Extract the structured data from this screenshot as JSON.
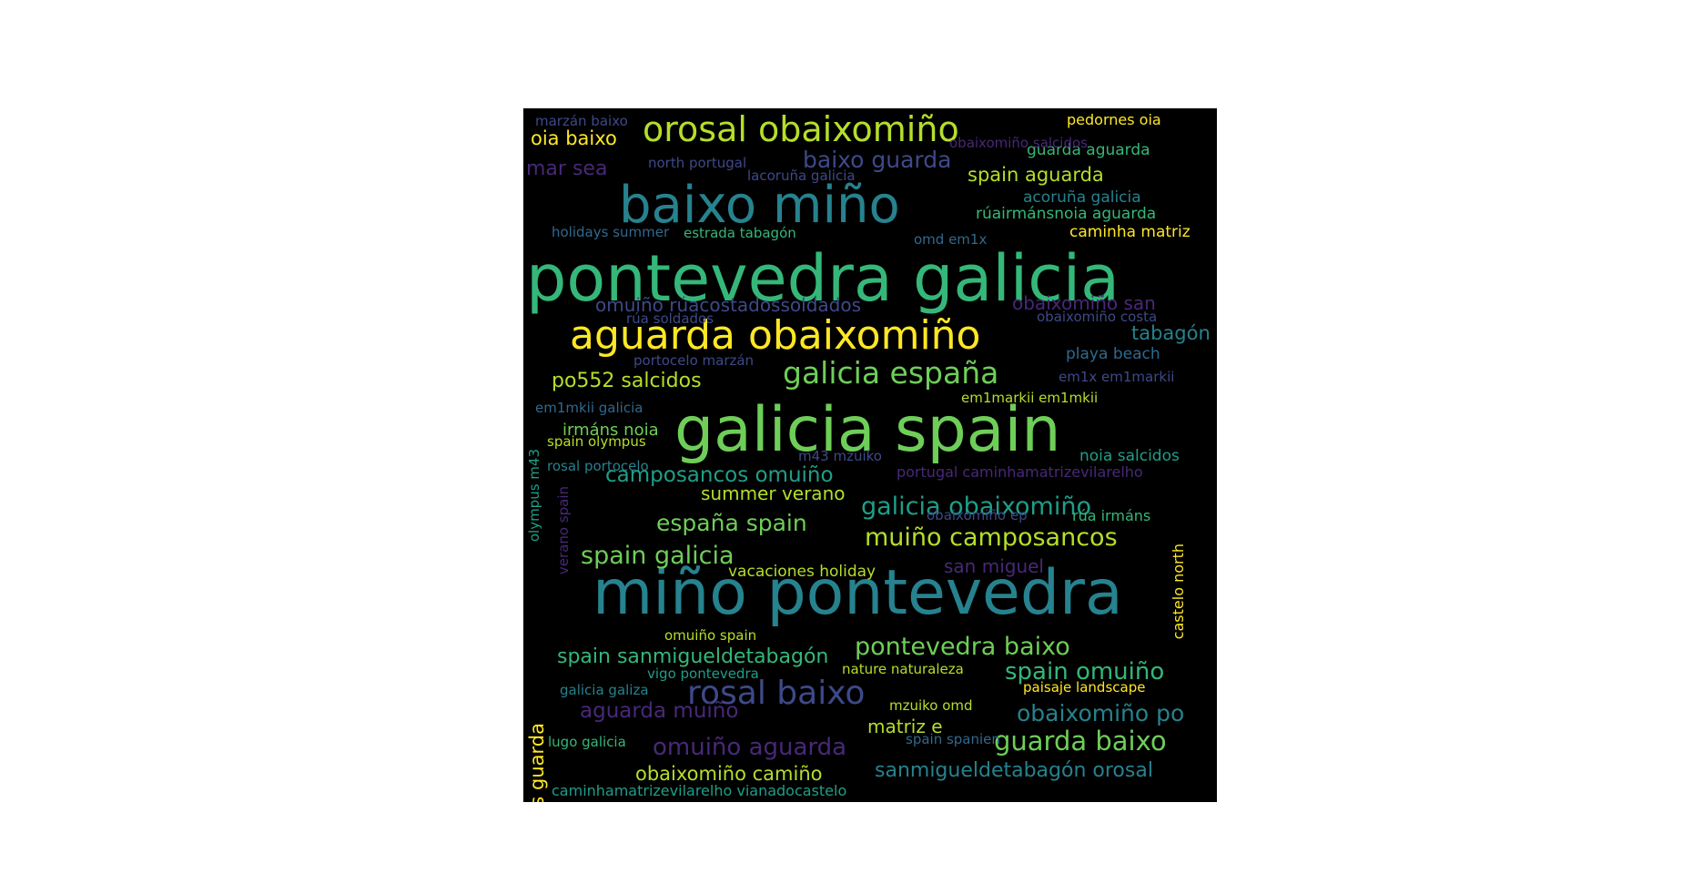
{
  "palette": {
    "yellow": "#fde725",
    "lime": "#b5de2b",
    "green": "#6ece58",
    "seagreen": "#35b779",
    "teal": "#1f9e89",
    "blue": "#26828e",
    "slate": "#31688e",
    "indigo": "#3e4989",
    "purple": "#482878",
    "dark": "#440154"
  },
  "words": [
    {
      "text": "pontevedra galicia",
      "color": "seagreen",
      "size": 70
    },
    {
      "text": "galicia spain",
      "color": "green",
      "size": 68
    },
    {
      "text": "miño pontevedra",
      "color": "blue",
      "size": 68
    },
    {
      "text": "baixo miño",
      "color": "blue",
      "size": 56
    },
    {
      "text": "aguarda obaixomiño",
      "color": "yellow",
      "size": 44
    },
    {
      "text": "orosal obaixomiño",
      "color": "lime",
      "size": 38
    },
    {
      "text": "rosal baixo",
      "color": "indigo",
      "size": 36
    },
    {
      "text": "galicia españa",
      "color": "green",
      "size": 33
    },
    {
      "text": "guarda baixo",
      "color": "green",
      "size": 29
    },
    {
      "text": "pontevedra baixo",
      "color": "green",
      "size": 27
    },
    {
      "text": "galicia obaixomiño",
      "color": "teal",
      "size": 27
    },
    {
      "text": "muiño camposancos",
      "color": "lime",
      "size": 27
    },
    {
      "text": "spain galicia",
      "color": "green",
      "size": 27
    },
    {
      "text": "spain omuiño",
      "color": "seagreen",
      "size": 26
    },
    {
      "text": "omuiño aguarda",
      "color": "purple",
      "size": 26
    },
    {
      "text": "baixo guarda",
      "color": "indigo",
      "size": 25
    },
    {
      "text": "españa spain",
      "color": "green",
      "size": 25
    },
    {
      "text": "obaixomiño po",
      "color": "blue",
      "size": 25
    },
    {
      "text": "camposancos omuiño",
      "color": "teal",
      "size": 23
    },
    {
      "text": "aguarda muiño",
      "color": "purple",
      "size": 23
    },
    {
      "text": "spain sanmigueldetabagón",
      "color": "seagreen",
      "size": 22
    },
    {
      "text": "sanmigueldetabagón orosal",
      "color": "blue",
      "size": 22
    },
    {
      "text": "mar sea",
      "color": "purple",
      "size": 22
    },
    {
      "text": "po552 salcidos",
      "color": "lime",
      "size": 22
    },
    {
      "text": "obaixomiño camiño",
      "color": "lime",
      "size": 21
    },
    {
      "text": "spain aguarda",
      "color": "lime",
      "size": 21
    },
    {
      "text": "oia baixo",
      "color": "yellow",
      "size": 21
    },
    {
      "text": "tabagón",
      "color": "blue",
      "size": 21
    },
    {
      "text": "salcidos guarda",
      "color": "yellow",
      "size": 21
    },
    {
      "text": "omuiño rúacostadossoldados",
      "color": "indigo",
      "size": 20
    },
    {
      "text": "obaixomiño san",
      "color": "purple",
      "size": 20
    },
    {
      "text": "summer verano",
      "color": "lime",
      "size": 20
    },
    {
      "text": "san miguel",
      "color": "purple",
      "size": 20
    },
    {
      "text": "matriz e",
      "color": "lime",
      "size": 20
    },
    {
      "text": "irmáns noia",
      "color": "green",
      "size": 18
    },
    {
      "text": "vacaciones holiday",
      "color": "lime",
      "size": 17
    },
    {
      "text": "rúairmánsnoia aguarda",
      "color": "seagreen",
      "size": 17
    },
    {
      "text": "playa beach",
      "color": "slate",
      "size": 17
    },
    {
      "text": "noia salcidos",
      "color": "teal",
      "size": 17
    },
    {
      "text": "guarda aguarda",
      "color": "seagreen",
      "size": 17
    },
    {
      "text": "acoruña galicia",
      "color": "blue",
      "size": 17
    },
    {
      "text": "caminha matriz",
      "color": "yellow",
      "size": 17
    },
    {
      "text": "castelo north",
      "color": "yellow",
      "size": 16
    },
    {
      "text": "pedornes oia",
      "color": "yellow",
      "size": 16
    },
    {
      "text": "rúa irmáns",
      "color": "seagreen",
      "size": 16
    },
    {
      "text": "caminhamatrizevilarelho vianadocastelo",
      "color": "teal",
      "size": 16
    },
    {
      "text": "portugal caminhamatrizevilarelho",
      "color": "purple",
      "size": 16
    },
    {
      "text": "holidays summer",
      "color": "slate",
      "size": 15
    },
    {
      "text": "omd em1x",
      "color": "slate",
      "size": 15
    },
    {
      "text": "obaixomiño salcidos",
      "color": "purple",
      "size": 15
    },
    {
      "text": "obaixomiño costa",
      "color": "indigo",
      "size": 15
    },
    {
      "text": "em1x em1markii",
      "color": "indigo",
      "size": 15
    },
    {
      "text": "em1markii em1mkii",
      "color": "lime",
      "size": 15
    },
    {
      "text": "em1mkii galicia",
      "color": "slate",
      "size": 15
    },
    {
      "text": "marzán baixo",
      "color": "indigo",
      "size": 15
    },
    {
      "text": "north portugal",
      "color": "indigo",
      "size": 15
    },
    {
      "text": "lacoruña galicia",
      "color": "indigo",
      "size": 15
    },
    {
      "text": "estrada tabagón",
      "color": "seagreen",
      "size": 15
    },
    {
      "text": "rúa soldados",
      "color": "indigo",
      "size": 15
    },
    {
      "text": "portocelo marzán",
      "color": "indigo",
      "size": 15
    },
    {
      "text": "spain olympus",
      "color": "lime",
      "size": 15
    },
    {
      "text": "rosal portocelo",
      "color": "blue",
      "size": 15
    },
    {
      "text": "m43 mzuiko",
      "color": "indigo",
      "size": 15
    },
    {
      "text": "obaixomiño ep",
      "color": "indigo",
      "size": 15
    },
    {
      "text": "omuiño spain",
      "color": "lime",
      "size": 15
    },
    {
      "text": "vigo pontevedra",
      "color": "teal",
      "size": 15
    },
    {
      "text": "nature naturaleza",
      "color": "lime",
      "size": 15
    },
    {
      "text": "paisaje landscape",
      "color": "yellow",
      "size": 15
    },
    {
      "text": "galicia galiza",
      "color": "blue",
      "size": 15
    },
    {
      "text": "mzuiko omd",
      "color": "lime",
      "size": 15
    },
    {
      "text": "lugo galicia",
      "color": "seagreen",
      "size": 15
    },
    {
      "text": "spain spanien",
      "color": "slate",
      "size": 15
    },
    {
      "text": "olympus m43",
      "color": "teal",
      "size": 15
    },
    {
      "text": "verano spain",
      "color": "purple",
      "size": 15
    }
  ]
}
